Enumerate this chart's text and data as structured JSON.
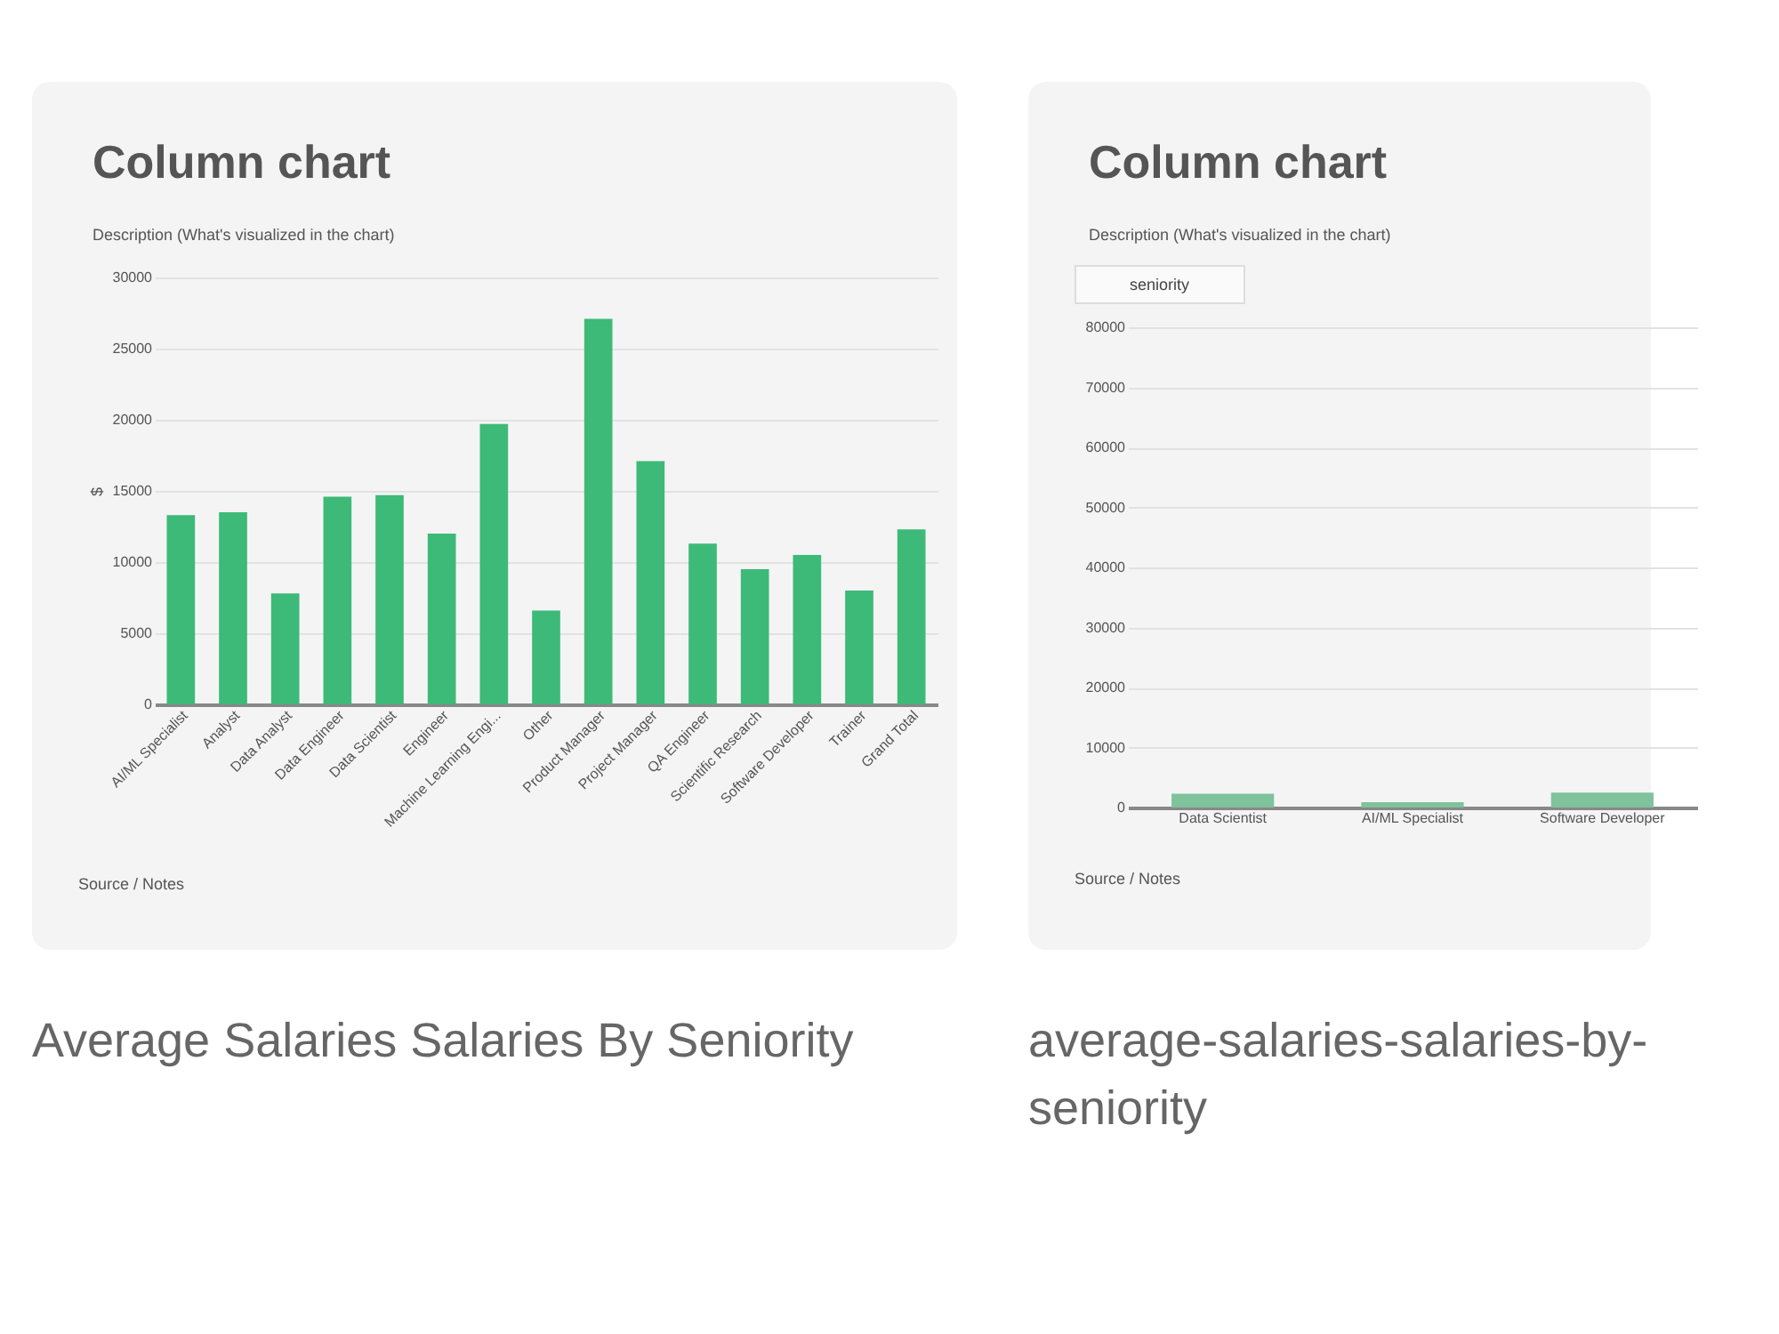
{
  "chart_data": [
    {
      "type": "bar",
      "title": "Column chart",
      "subtitle": "Description (What's visualized in the chart)",
      "ylabel": "$",
      "categories": [
        "AI/ML Specialist",
        "Analyst",
        "Data Analyst",
        "Data Engineer",
        "Data Scientist",
        "Engineer",
        "Machine Learning Engi...",
        "Other",
        "Product Manager",
        "Project Manager",
        "QA Engineer",
        "Scientific Research",
        "Software Developer",
        "Trainer",
        "Grand Total"
      ],
      "values": [
        13300,
        13500,
        7800,
        14600,
        14700,
        12000,
        19700,
        6600,
        27100,
        17100,
        11300,
        9500,
        10500,
        8000,
        12300
      ],
      "color": "#3dba78",
      "ylim": [
        0,
        30000
      ],
      "yticks": [
        0,
        5000,
        10000,
        15000,
        20000,
        25000,
        30000
      ],
      "grid": "y",
      "annotations": [
        "Source / Notes",
        "Average Salaries Salaries By Seniority"
      ]
    },
    {
      "type": "bar",
      "title": "Column chart",
      "subtitle": "Description (What's visualized in the chart)",
      "categories": [
        "Data Scientist",
        "AI/ML Specialist",
        "Software Developer"
      ],
      "values": [
        2300,
        900,
        2500
      ],
      "color": "#7fc29b",
      "ylim": [
        0,
        80000
      ],
      "yticks": [
        0,
        10000,
        20000,
        30000,
        40000,
        50000,
        60000,
        70000,
        80000
      ],
      "grid": "y",
      "annotations": [
        "seniority",
        "Source / Notes",
        "average-salaries-salaries-by-seniority"
      ]
    }
  ]
}
